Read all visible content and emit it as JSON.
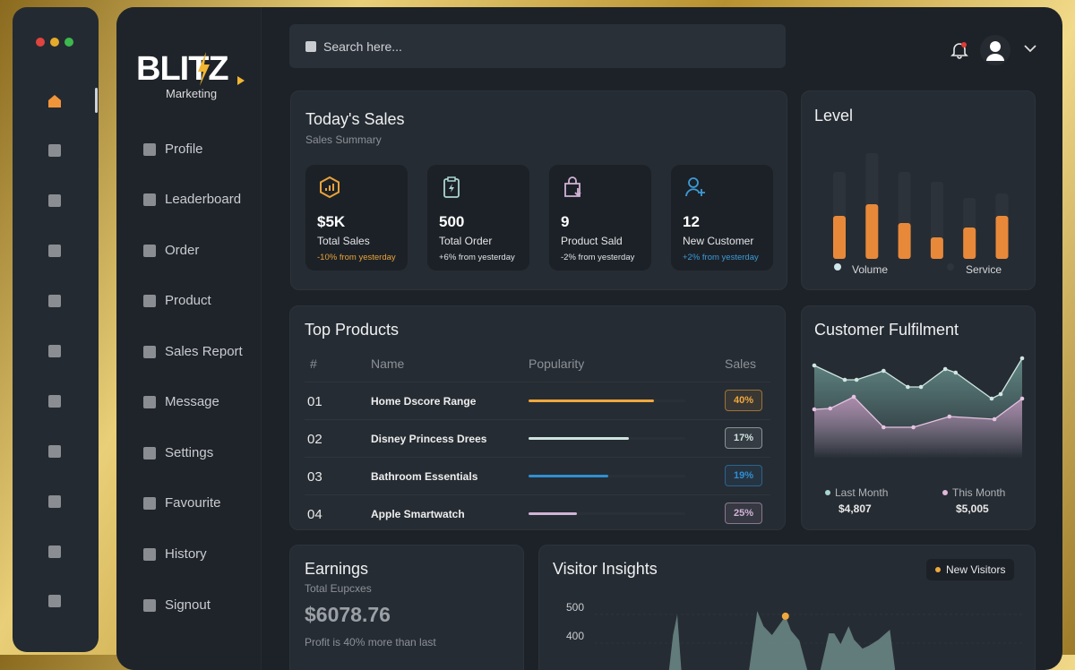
{
  "window": {
    "controls": [
      "close",
      "minimize",
      "maximize"
    ],
    "colors": {
      "close": "#e0443e",
      "minimize": "#e5a92b",
      "maximize": "#3cb94e"
    }
  },
  "brand": {
    "name": "BLITZ",
    "tagline": "Marketing"
  },
  "search": {
    "placeholder": "Search here..."
  },
  "header": {
    "notification_badge": true
  },
  "nav": [
    {
      "label": "Profile"
    },
    {
      "label": "Leaderboard"
    },
    {
      "label": "Order"
    },
    {
      "label": "Product"
    },
    {
      "label": "Sales Report"
    },
    {
      "label": "Message"
    },
    {
      "label": "Settings"
    },
    {
      "label": "Favourite"
    },
    {
      "label": "History"
    },
    {
      "label": "Signout"
    }
  ],
  "todays_sales": {
    "title": "Today's Sales",
    "subtitle": "Sales Summary",
    "stats": [
      {
        "icon": "chart-hexagon-icon",
        "value": "$5K",
        "label": "Total Sales",
        "change": "-10% from yesterday",
        "color": "#e8a33a"
      },
      {
        "icon": "clipboard-bolt-icon",
        "value": "500",
        "label": "Total Order",
        "change": "+6% from yesterday",
        "color": "#a9d6d0"
      },
      {
        "icon": "shopping-bag-icon",
        "value": "9",
        "label": "Product Sald",
        "change": "-2% from yesterday",
        "color": "#d1b3d6"
      },
      {
        "icon": "add-user-icon",
        "value": "12",
        "label": "New Customer",
        "change": "+2% from yesterday",
        "color": "#3d9ad6"
      }
    ]
  },
  "level": {
    "title": "Level",
    "legend": [
      "Volume",
      "Service"
    ]
  },
  "top_products": {
    "title": "Top Products",
    "columns": [
      "#",
      "Name",
      "Popularity",
      "Sales"
    ],
    "rows": [
      {
        "num": "01",
        "name": "Home Dscore Range",
        "popularity": 0.8,
        "sales": "40%",
        "color": "#f0a83c"
      },
      {
        "num": "02",
        "name": "Disney Princess Drees",
        "popularity": 0.64,
        "sales": "17%",
        "color": "#cfe3e0"
      },
      {
        "num": "03",
        "name": "Bathroom Essentials",
        "popularity": 0.51,
        "sales": "19%",
        "color": "#2f8fd1"
      },
      {
        "num": "04",
        "name": "Apple Smartwatch",
        "popularity": 0.31,
        "sales": "25%",
        "color": "#d1b3d6"
      }
    ]
  },
  "fulfilment": {
    "title": "Customer Fulfilment",
    "last_label": "Last Month",
    "last_value": "$4,807",
    "this_label": "This Month",
    "this_value": "$5,005"
  },
  "earnings": {
    "title": "Earnings",
    "subtitle": "Total Eupcxes",
    "value": "$6078.76",
    "note": "Profit is 40% more than last"
  },
  "visitors": {
    "title": "Visitor Insights",
    "legend": "New Visitors",
    "y_ticks": [
      "500",
      "400"
    ]
  },
  "chart_data": [
    {
      "type": "bar",
      "title": "Level",
      "series": [
        {
          "name": "Service",
          "values": [
            97,
            118,
            97,
            86,
            68,
            73
          ]
        },
        {
          "name": "Volume",
          "values": [
            48,
            61,
            40,
            24,
            35,
            48
          ]
        }
      ],
      "ylim": [
        0,
        120
      ]
    },
    {
      "type": "area",
      "title": "Customer Fulfilment",
      "series": [
        {
          "name": "Last Month",
          "x": [
            0,
            4.4,
            6.1,
            10,
            13.5,
            15.4,
            18.9,
            20.4,
            25.6,
            26.9,
            30
          ],
          "y": [
            111,
            95,
            95,
            105,
            87,
            87,
            107,
            103,
            74,
            79,
            119
          ]
        },
        {
          "name": "This Month",
          "x": [
            0,
            2.3,
            5.7,
            10,
            14.3,
            19.5,
            26,
            30
          ],
          "y": [
            62,
            63,
            76,
            42,
            42,
            54,
            51,
            74
          ]
        }
      ],
      "xlim": [
        0,
        30
      ],
      "ylim": [
        0,
        130
      ]
    },
    {
      "type": "area",
      "title": "Visitor Insights",
      "y_ticks": [
        500,
        400
      ],
      "ylim": [
        300,
        540
      ],
      "xlim": [
        0,
        100
      ],
      "series": [
        {
          "name": "New Visitors",
          "x": [
            18,
            19,
            20,
            21,
            37,
            39,
            40.5,
            42.5,
            45.7,
            47,
            49,
            51,
            53.9,
            56,
            57.3,
            58.8,
            60.7,
            62,
            64,
            65.5,
            67.8,
            70.5,
            71.8
          ],
          "y": [
            300,
            428,
            500,
            300,
            300,
            512,
            459,
            428,
            494,
            444,
            409,
            300,
            300,
            434,
            434,
            397,
            459,
            412,
            381,
            391,
            412,
            447,
            300
          ]
        }
      ],
      "highlight": {
        "x": 45.7,
        "y": 494
      }
    }
  ]
}
